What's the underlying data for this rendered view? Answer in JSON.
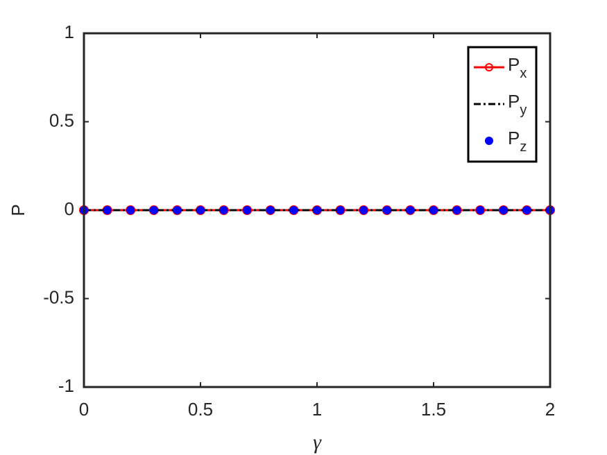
{
  "chart_data": {
    "type": "line",
    "x": [
      0,
      0.1,
      0.2,
      0.3,
      0.4,
      0.5,
      0.6,
      0.7,
      0.8,
      0.9,
      1,
      1.1,
      1.2,
      1.3,
      1.4,
      1.5,
      1.6,
      1.7,
      1.8,
      1.9,
      2
    ],
    "series": [
      {
        "name": "Px",
        "color": "#ff0000",
        "line": "solid",
        "marker": "circle-open",
        "values": [
          0,
          0,
          0,
          0,
          0,
          0,
          0,
          0,
          0,
          0,
          0,
          0,
          0,
          0,
          0,
          0,
          0,
          0,
          0,
          0,
          0
        ]
      },
      {
        "name": "Py",
        "color": "#000000",
        "line": "dashdot",
        "marker": "none",
        "values": [
          0,
          0,
          0,
          0,
          0,
          0,
          0,
          0,
          0,
          0,
          0,
          0,
          0,
          0,
          0,
          0,
          0,
          0,
          0,
          0,
          0
        ]
      },
      {
        "name": "Pz",
        "color": "#0000ff",
        "line": "none",
        "marker": "dot",
        "values": [
          0,
          0,
          0,
          0,
          0,
          0,
          0,
          0,
          0,
          0,
          0,
          0,
          0,
          0,
          0,
          0,
          0,
          0,
          0,
          0,
          0
        ]
      }
    ],
    "xlabel": "γ",
    "ylabel": "P",
    "xlim": [
      0,
      2
    ],
    "xticks": [
      0,
      0.5,
      1,
      1.5,
      2
    ],
    "ylim": [
      -1,
      1
    ],
    "yticks": [
      -1,
      -0.5,
      0,
      0.5,
      1
    ],
    "legend": "upper right"
  }
}
